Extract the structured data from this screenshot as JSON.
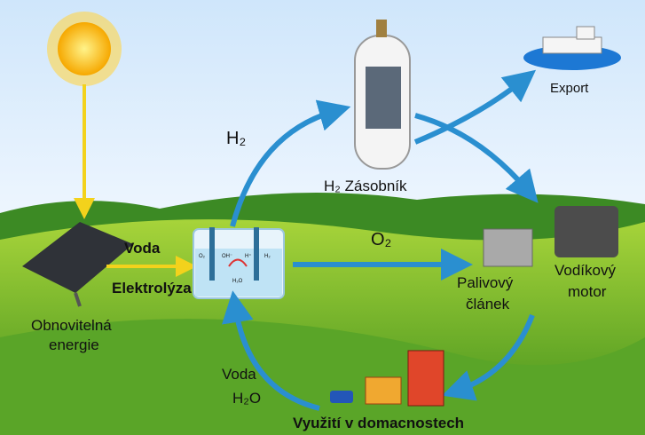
{
  "labels": {
    "hydrogen": "H₂",
    "storage": "H₂ Zásobník",
    "export": "Export",
    "water_in": "Voda",
    "electrolysis": "Elektrolýza",
    "oxygen": "O₂",
    "fuel_cell": [
      "Palivový",
      "článek"
    ],
    "engine": [
      "Vodíkový",
      "motor"
    ],
    "renewable": [
      "Obnovitelná",
      "energie"
    ],
    "water_out": [
      "Voda",
      "H₂O"
    ],
    "households": "Využití v domacnostech",
    "cell_parts": [
      "O₂",
      "OH⁻",
      "H⁺",
      "H₂",
      "H₂O"
    ]
  }
}
